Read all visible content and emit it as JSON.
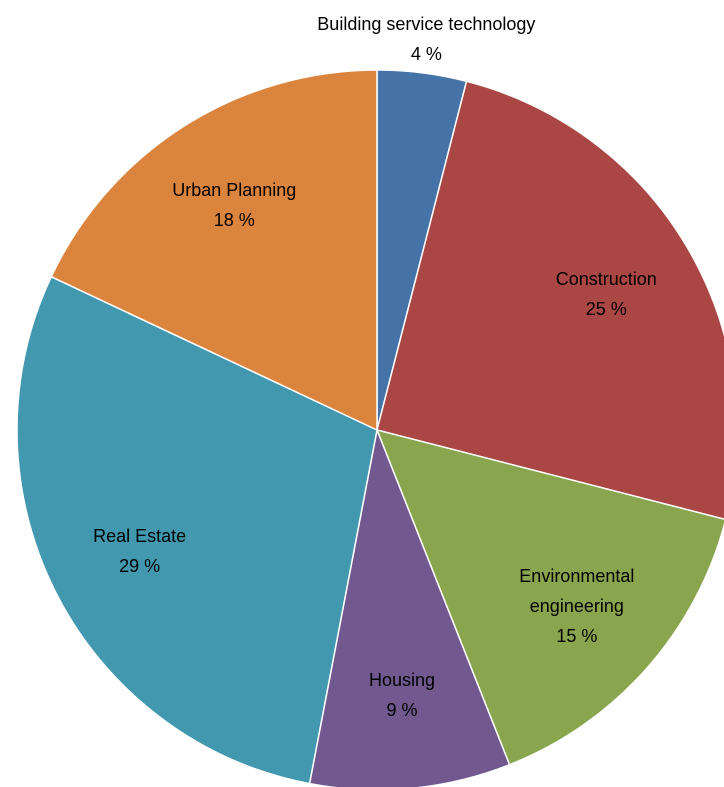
{
  "chart_data": {
    "type": "pie",
    "categories": [
      "Building service technology",
      "Construction",
      "Environmental engineering",
      "Housing",
      "Real Estate",
      "Urban Planning"
    ],
    "values": [
      4,
      25,
      15,
      9,
      29,
      18
    ],
    "value_labels": [
      "4 %",
      "25 %",
      "15 %",
      "9 %",
      "29 %",
      "18 %"
    ],
    "colors": [
      "#4572a7",
      "#aa4643",
      "#89a54e",
      "#71588f",
      "#4198af",
      "#db843d"
    ]
  }
}
